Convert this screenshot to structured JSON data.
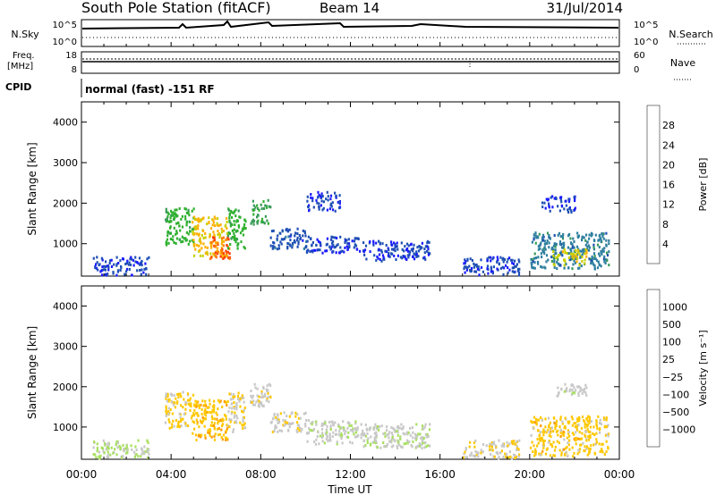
{
  "header": {
    "station": "South Pole Station (fitACF)",
    "beam": "Beam 14",
    "date": "31/Jul/2014"
  },
  "top_panels": {
    "nsky_label": "N.Sky",
    "nsky_ticks": [
      "10^5",
      "10^0"
    ],
    "nsearch_label": "N.Search",
    "nsearch_ticks": [
      "10^5",
      "10^0"
    ],
    "freq_label": "Freq.",
    "freq_unit": "[MHz]",
    "freq_ticks": [
      "18",
      "8"
    ],
    "nave_label": "Nave",
    "nave_ticks": [
      "60",
      "0"
    ],
    "cpid_label": "CPID",
    "cpid_value": "normal (fast) -151 RF"
  },
  "colors": {
    "power": [
      "#1a1aff",
      "#1f4fb4",
      "#2f7f9f",
      "#3a9a5a",
      "#2eb02e",
      "#c8d000",
      "#ffb000",
      "#ff7a00",
      "#ff3a00",
      "#ff0000"
    ],
    "velocity": [
      "#ff0000",
      "#ff6a00",
      "#ff9a00",
      "#ffc800",
      "#c8c8c8",
      "#a8e060",
      "#30c030",
      "#2f8f6f",
      "#1f5fb0",
      "#1a1aff"
    ]
  },
  "chart_data": [
    {
      "type": "heatmap",
      "panel": "power",
      "ylabel": "Slant Range [km]",
      "ylim": [
        200,
        4500
      ],
      "y_ticks": [
        "1000",
        "2000",
        "3000",
        "4000"
      ],
      "xlim": [
        0,
        24
      ],
      "colorbar_label": "Power [dB]",
      "colorbar_ticks": [
        "4",
        "8",
        "12",
        "16",
        "20",
        "24",
        "28"
      ],
      "colorbar_range": [
        0,
        32
      ],
      "patches": [
        {
          "x": [
            3.7,
            5.0
          ],
          "y": [
            1000,
            1900
          ],
          "v": 14
        },
        {
          "x": [
            4.9,
            6.5
          ],
          "y": [
            700,
            1700
          ],
          "v": 20
        },
        {
          "x": [
            5.7,
            6.6
          ],
          "y": [
            650,
            1200
          ],
          "v": 26
        },
        {
          "x": [
            6.5,
            7.3
          ],
          "y": [
            900,
            1900
          ],
          "v": 14
        },
        {
          "x": [
            7.5,
            8.4
          ],
          "y": [
            1500,
            2100
          ],
          "v": 12
        },
        {
          "x": [
            8.4,
            10.0
          ],
          "y": [
            900,
            1400
          ],
          "v": 5
        },
        {
          "x": [
            10.0,
            12.5
          ],
          "y": [
            800,
            1200
          ],
          "v": 4
        },
        {
          "x": [
            12.5,
            15.5
          ],
          "y": [
            600,
            1100
          ],
          "v": 4
        },
        {
          "x": [
            17.0,
            19.5
          ],
          "y": [
            250,
            700
          ],
          "v": 4
        },
        {
          "x": [
            20.0,
            23.5
          ],
          "y": [
            400,
            1300
          ],
          "v": 8
        },
        {
          "x": [
            21.0,
            22.5
          ],
          "y": [
            500,
            900
          ],
          "v": 18
        },
        {
          "x": [
            20.5,
            22.0
          ],
          "y": [
            1800,
            2200
          ],
          "v": 4
        },
        {
          "x": [
            10.0,
            11.5
          ],
          "y": [
            1800,
            2300
          ],
          "v": 4
        },
        {
          "x": [
            0.5,
            3.0
          ],
          "y": [
            250,
            700
          ],
          "v": 4
        }
      ]
    },
    {
      "type": "heatmap",
      "panel": "velocity",
      "ylabel": "Slant Range [km]",
      "ylim": [
        200,
        4500
      ],
      "y_ticks": [
        "1000",
        "2000",
        "3000",
        "4000"
      ],
      "xlim": [
        0,
        24
      ],
      "xlabel": "Time UT",
      "x_ticks": [
        "00:00",
        "04:00",
        "08:00",
        "12:00",
        "16:00",
        "20:00",
        "00:00"
      ],
      "colorbar_label": "Velocity [m s⁻¹]",
      "colorbar_ticks": [
        "1000",
        "500",
        "100",
        "25",
        "−25",
        "−100",
        "−500",
        "−1000"
      ],
      "colorbar_range": [
        -1200,
        1200
      ],
      "patches": [
        {
          "x": [
            3.7,
            5.0
          ],
          "y": [
            1000,
            1900
          ],
          "v": -300
        },
        {
          "x": [
            4.9,
            6.5
          ],
          "y": [
            700,
            1700
          ],
          "v": -400
        },
        {
          "x": [
            6.5,
            7.3
          ],
          "y": [
            900,
            1900
          ],
          "v": -250
        },
        {
          "x": [
            7.5,
            8.4
          ],
          "y": [
            1500,
            2100
          ],
          "v": -150
        },
        {
          "x": [
            8.4,
            10.0
          ],
          "y": [
            900,
            1400
          ],
          "v": -150
        },
        {
          "x": [
            10.0,
            12.5
          ],
          "y": [
            600,
            1200
          ],
          "v": -90
        },
        {
          "x": [
            12.5,
            15.5
          ],
          "y": [
            500,
            1100
          ],
          "v": -60
        },
        {
          "x": [
            17.0,
            19.5
          ],
          "y": [
            250,
            700
          ],
          "v": -200
        },
        {
          "x": [
            20.0,
            23.5
          ],
          "y": [
            300,
            1300
          ],
          "v": -350
        },
        {
          "x": [
            21.0,
            22.5
          ],
          "y": [
            1800,
            2100
          ],
          "v": -80
        },
        {
          "x": [
            0.5,
            3.0
          ],
          "y": [
            250,
            700
          ],
          "v": 20
        }
      ]
    }
  ]
}
